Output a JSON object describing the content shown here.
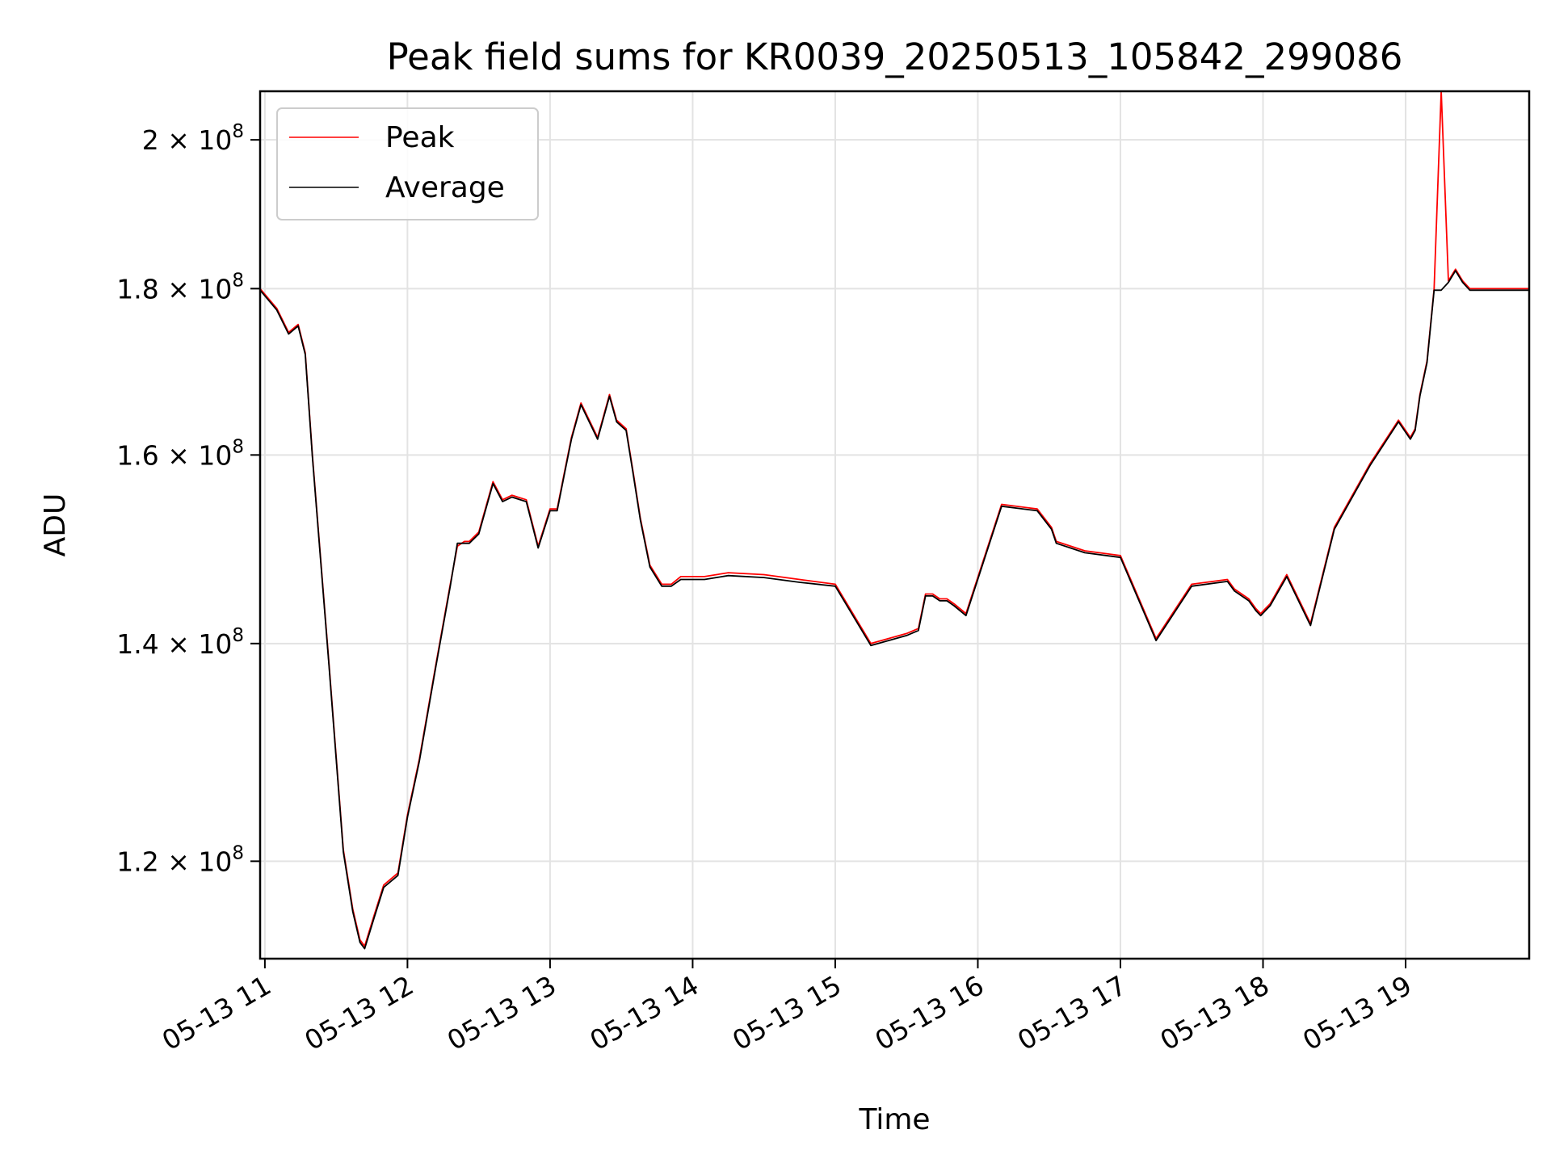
{
  "chart_data": {
    "type": "line",
    "title": "Peak field sums for KR0039_20250513_105842_299086",
    "xlabel": "Time",
    "ylabel": "ADU",
    "y_scale": "log",
    "xlim": [
      "05-13 10:58",
      "05-13 19:52"
    ],
    "ylim": [
      112000000,
      207000000
    ],
    "grid": true,
    "legend": "top-left",
    "x_ticks": [
      "05-13 11",
      "05-13 12",
      "05-13 13",
      "05-13 14",
      "05-13 15",
      "05-13 16",
      "05-13 17",
      "05-13 18",
      "05-13 19"
    ],
    "y_ticks": [
      {
        "value": 200000000,
        "mantissa": "2",
        "exponent": "8"
      },
      {
        "value": 180000000,
        "mantissa": "1.8",
        "exponent": "8"
      },
      {
        "value": 160000000,
        "mantissa": "1.6",
        "exponent": "8"
      },
      {
        "value": 140000000,
        "mantissa": "1.4",
        "exponent": "8"
      },
      {
        "value": 120000000,
        "mantissa": "1.2",
        "exponent": "8"
      }
    ],
    "x": [
      "05-13 10:58",
      "05-13 11:05",
      "05-13 11:10",
      "05-13 11:14",
      "05-13 11:17",
      "05-13 11:20",
      "05-13 11:27",
      "05-13 11:33",
      "05-13 11:37",
      "05-13 11:40",
      "05-13 11:42",
      "05-13 11:46",
      "05-13 11:50",
      "05-13 11:56",
      "05-13 12:00",
      "05-13 12:05",
      "05-13 12:12",
      "05-13 12:18",
      "05-13 12:21",
      "05-13 12:24",
      "05-13 12:26",
      "05-13 12:30",
      "05-13 12:36",
      "05-13 12:40",
      "05-13 12:44",
      "05-13 12:50",
      "05-13 12:55",
      "05-13 13:00",
      "05-13 13:03",
      "05-13 13:06",
      "05-13 13:09",
      "05-13 13:13",
      "05-13 13:20",
      "05-13 13:25",
      "05-13 13:28",
      "05-13 13:32",
      "05-13 13:35",
      "05-13 13:38",
      "05-13 13:42",
      "05-13 13:47",
      "05-13 13:51",
      "05-13 13:55",
      "05-13 14:05",
      "05-13 14:15",
      "05-13 14:30",
      "05-13 14:45",
      "05-13 15:00",
      "05-13 15:15",
      "05-13 15:30",
      "05-13 15:35",
      "05-13 15:38",
      "05-13 15:41",
      "05-13 15:44",
      "05-13 15:47",
      "05-13 15:50",
      "05-13 15:55",
      "05-13 16:10",
      "05-13 16:25",
      "05-13 16:28",
      "05-13 16:31",
      "05-13 16:33",
      "05-13 16:45",
      "05-13 17:00",
      "05-13 17:15",
      "05-13 17:30",
      "05-13 17:45",
      "05-13 17:48",
      "05-13 17:54",
      "05-13 17:57",
      "05-13 17:59",
      "05-13 18:01",
      "05-13 18:03",
      "05-13 18:10",
      "05-13 18:20",
      "05-13 18:30",
      "05-13 18:45",
      "05-13 18:57",
      "05-13 19:02",
      "05-13 19:04",
      "05-13 19:06",
      "05-13 19:09",
      "05-13 19:12",
      "05-13 19:15",
      "05-13 19:18",
      "05-13 19:21",
      "05-13 19:24",
      "05-13 19:27",
      "05-13 19:33",
      "05-13 19:39",
      "05-13 19:41",
      "05-13 19:43",
      "05-13 19:45",
      "05-13 19:47",
      "05-13 19:49",
      "05-13 19:52"
    ],
    "series": [
      {
        "name": "Peak",
        "color": "#ff0000",
        "values": [
          180000000,
          177500000,
          174500000,
          175500000,
          172000000,
          160000000,
          138000000,
          121000000,
          116000000,
          113500000,
          113000000,
          115500000,
          118000000,
          119000000,
          124000000,
          129000000,
          138000000,
          146000000,
          150000000,
          150500000,
          150500000,
          151500000,
          157000000,
          155000000,
          155500000,
          155000000,
          150000000,
          154000000,
          154000000,
          158000000,
          162000000,
          166000000,
          162000000,
          167000000,
          164000000,
          163000000,
          158000000,
          153000000,
          148000000,
          146000000,
          146000000,
          146800000,
          146800000,
          147200000,
          147000000,
          146500000,
          146000000,
          140000000,
          141000000,
          141500000,
          145000000,
          145000000,
          144500000,
          144500000,
          144000000,
          143000000,
          154500000,
          154000000,
          153000000,
          152000000,
          150500000,
          149500000,
          149000000,
          140500000,
          146000000,
          146500000,
          145500000,
          144500000,
          143500000,
          143000000,
          143500000,
          144000000,
          147000000,
          142000000,
          152000000,
          159000000,
          164000000,
          162000000,
          163000000,
          167000000,
          171000000,
          180000000,
          207000000,
          181000000,
          182500000,
          181000000,
          180000000,
          180000000,
          180000000,
          180000000,
          180000000,
          180000000,
          180000000,
          180000000,
          180000000
        ]
      },
      {
        "name": "Average",
        "color": "#000000",
        "values": [
          179800000,
          177300000,
          174300000,
          175300000,
          171800000,
          159800000,
          137800000,
          120800000,
          115800000,
          113300000,
          112800000,
          115300000,
          117800000,
          118800000,
          123800000,
          128800000,
          137800000,
          145800000,
          150300000,
          150300000,
          150300000,
          151300000,
          156800000,
          154800000,
          155300000,
          154800000,
          149800000,
          153800000,
          153800000,
          157800000,
          161800000,
          165800000,
          161800000,
          166800000,
          163800000,
          162800000,
          157800000,
          152800000,
          147800000,
          145800000,
          145800000,
          146500000,
          146500000,
          146900000,
          146700000,
          146200000,
          145800000,
          139800000,
          140800000,
          141300000,
          144800000,
          144800000,
          144300000,
          144300000,
          143800000,
          142800000,
          154300000,
          153800000,
          152800000,
          151800000,
          150300000,
          149300000,
          148800000,
          140300000,
          145800000,
          146300000,
          145300000,
          144300000,
          143300000,
          142800000,
          143300000,
          143800000,
          146800000,
          141800000,
          151800000,
          158800000,
          163800000,
          161800000,
          162800000,
          166800000,
          170800000,
          179800000,
          179800000,
          180800000,
          182300000,
          180800000,
          179800000,
          179800000,
          179800000,
          179800000,
          179800000,
          179800000,
          179800000,
          179800000,
          179800000
        ]
      }
    ]
  }
}
